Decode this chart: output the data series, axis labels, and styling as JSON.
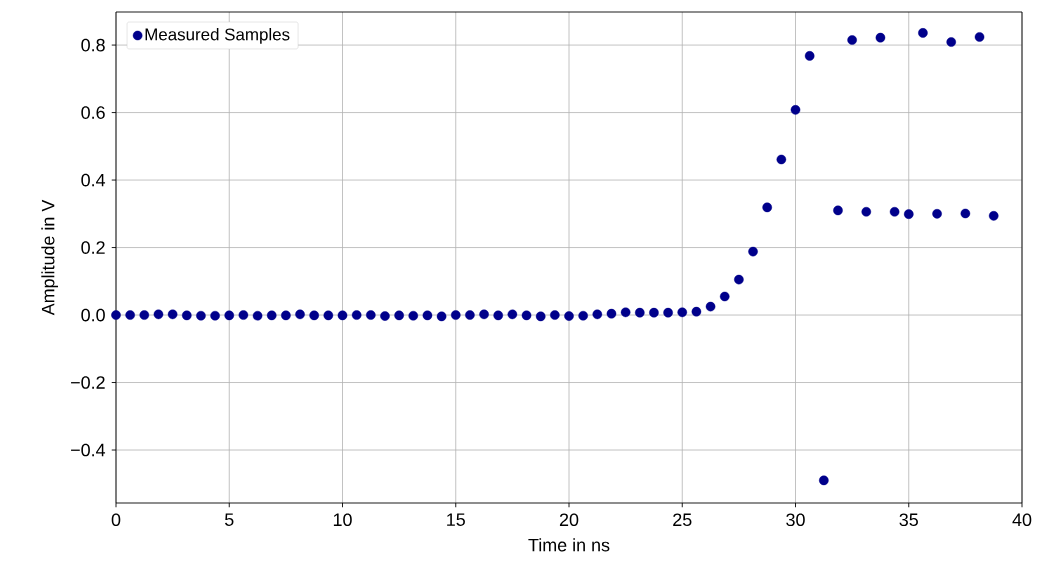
{
  "chart_data": {
    "type": "scatter",
    "xlabel": "Time in ns",
    "ylabel": "Amplitude in V",
    "x": [
      0,
      0.625,
      1.25,
      1.875,
      2.5,
      3.125,
      3.75,
      4.375,
      5,
      5.625,
      6.25,
      6.875,
      7.5,
      8.125,
      8.75,
      9.375,
      10,
      10.625,
      11.25,
      11.875,
      12.5,
      13.125,
      13.75,
      14.375,
      15,
      15.625,
      16.25,
      16.875,
      17.5,
      18.125,
      18.75,
      19.375,
      20,
      20.625,
      21.25,
      21.875,
      22.5,
      23.125,
      23.75,
      24.375,
      25,
      25.625,
      26.25,
      26.875,
      27.5,
      28.125,
      28.75,
      29.375,
      30,
      30.625,
      31.25,
      31.875,
      32.5,
      33.125,
      33.75,
      34.375,
      35,
      35.625,
      36.25,
      36.875,
      37.5,
      38.125,
      38.75
    ],
    "series": [
      {
        "name": "Measured Samples",
        "color": "#00008b",
        "values": [
          0,
          0,
          0,
          0.002,
          0.002,
          -0.001,
          -0.002,
          -0.002,
          -0.001,
          0,
          -0.002,
          -0.001,
          -0.001,
          0.002,
          -0.001,
          -0.001,
          -0.001,
          0,
          0,
          -0.003,
          -0.001,
          -0.002,
          -0.001,
          -0.004,
          0,
          0,
          0.002,
          -0.001,
          0.002,
          -0.001,
          -0.004,
          0,
          -0.003,
          -0.002,
          0.002,
          0.004,
          0.008,
          0.007,
          0.007,
          0.007,
          0.008,
          0.01,
          0.025,
          0.055,
          0.105,
          0.188,
          0.319,
          0.461,
          0.608,
          0.768,
          -0.49,
          0.31,
          0.815,
          0.306,
          0.822,
          0.306,
          0.299,
          0.836,
          0.3,
          0.809,
          0.301,
          0.824,
          0.294
        ]
      }
    ],
    "xlim": [
      0,
      40
    ],
    "ylim": [
      -0.557,
      0.898
    ],
    "xticks": [
      0,
      5,
      10,
      15,
      20,
      25,
      30,
      35,
      40
    ],
    "yticks": [
      {
        "value": -0.4,
        "label": "−0.4"
      },
      {
        "value": -0.2,
        "label": "−0.2"
      },
      {
        "value": 0,
        "label": "0.0"
      },
      {
        "value": 0.2,
        "label": "0.2"
      },
      {
        "value": 0.4,
        "label": "0.4"
      },
      {
        "value": 0.6,
        "label": "0.6"
      },
      {
        "value": 0.8,
        "label": "0.8"
      }
    ],
    "grid": true,
    "legend": "top left",
    "marker": "circle"
  }
}
